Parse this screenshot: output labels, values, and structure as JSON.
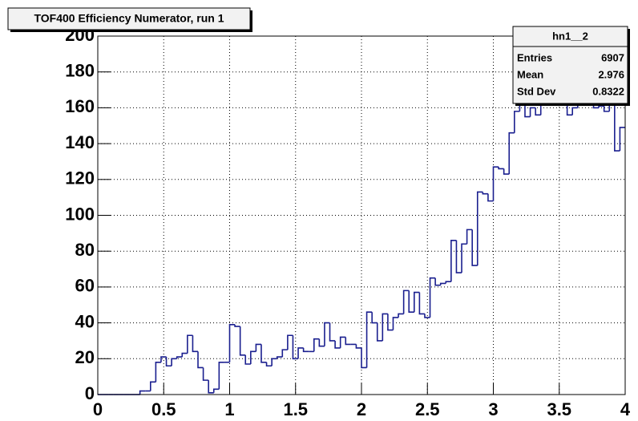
{
  "chart_data": {
    "type": "histogram",
    "title": "TOF400 Efficiency Numerator, run 1",
    "bins": [
      0,
      0.04,
      0.08,
      0.12,
      0.16,
      0.2,
      0.24,
      0.28,
      0.32,
      0.36,
      0.4,
      0.44,
      0.48,
      0.52,
      0.56,
      0.6,
      0.64,
      0.68,
      0.72,
      0.76,
      0.8,
      0.84,
      0.88,
      0.92,
      0.96,
      1,
      1.04,
      1.08,
      1.12,
      1.16,
      1.2,
      1.24,
      1.28,
      1.32,
      1.36,
      1.4,
      1.44,
      1.48,
      1.52,
      1.56,
      1.6,
      1.64,
      1.68,
      1.72,
      1.76,
      1.8,
      1.84,
      1.88,
      1.92,
      1.96,
      2,
      2.04,
      2.08,
      2.12,
      2.16,
      2.2,
      2.24,
      2.28,
      2.32,
      2.36,
      2.4,
      2.44,
      2.48,
      2.52,
      2.56,
      2.6,
      2.64,
      2.68,
      2.72,
      2.76,
      2.8,
      2.84,
      2.88,
      2.92,
      2.96,
      3,
      3.04,
      3.08,
      3.12,
      3.16,
      3.2,
      3.24,
      3.28,
      3.32,
      3.36,
      3.4,
      3.44,
      3.48,
      3.52,
      3.56,
      3.6,
      3.64,
      3.68,
      3.72,
      3.76,
      3.8,
      3.84,
      3.88,
      3.92,
      3.96,
      4
    ],
    "values": [
      0,
      0,
      0,
      0,
      0,
      0,
      0,
      0,
      2,
      2,
      7,
      18,
      21,
      16,
      20,
      21,
      23,
      33,
      24,
      15,
      8,
      1,
      3,
      18,
      18,
      39,
      38,
      22,
      17,
      24,
      28,
      18,
      16,
      20,
      21,
      25,
      33,
      20,
      26,
      24,
      24,
      31,
      27,
      40,
      30,
      26,
      32,
      28,
      28,
      26,
      15,
      46,
      40,
      30,
      45,
      36,
      43,
      45,
      58,
      46,
      57,
      45,
      43,
      65,
      61,
      62,
      63,
      86,
      68,
      84,
      92,
      72,
      113,
      112,
      108,
      127,
      126,
      123,
      146,
      158,
      162,
      155,
      160,
      156,
      165,
      168,
      170,
      162,
      165,
      156,
      160,
      165,
      163,
      168,
      160,
      161,
      158,
      163,
      136,
      149
    ],
    "color": "#1a1f8f",
    "xlim": [
      0,
      4
    ],
    "xticks": [
      0,
      0.5,
      1,
      1.5,
      2,
      2.5,
      3,
      3.5,
      4
    ],
    "ylim": [
      0,
      200
    ],
    "yticks": [
      0,
      20,
      40,
      60,
      80,
      100,
      120,
      140,
      160,
      180,
      200
    ],
    "grid": true,
    "stats": {
      "name": "hn1__2",
      "rows": [
        [
          "Entries",
          6907
        ],
        [
          "Mean",
          2.976
        ],
        [
          "Std Dev",
          0.8322
        ]
      ]
    }
  }
}
